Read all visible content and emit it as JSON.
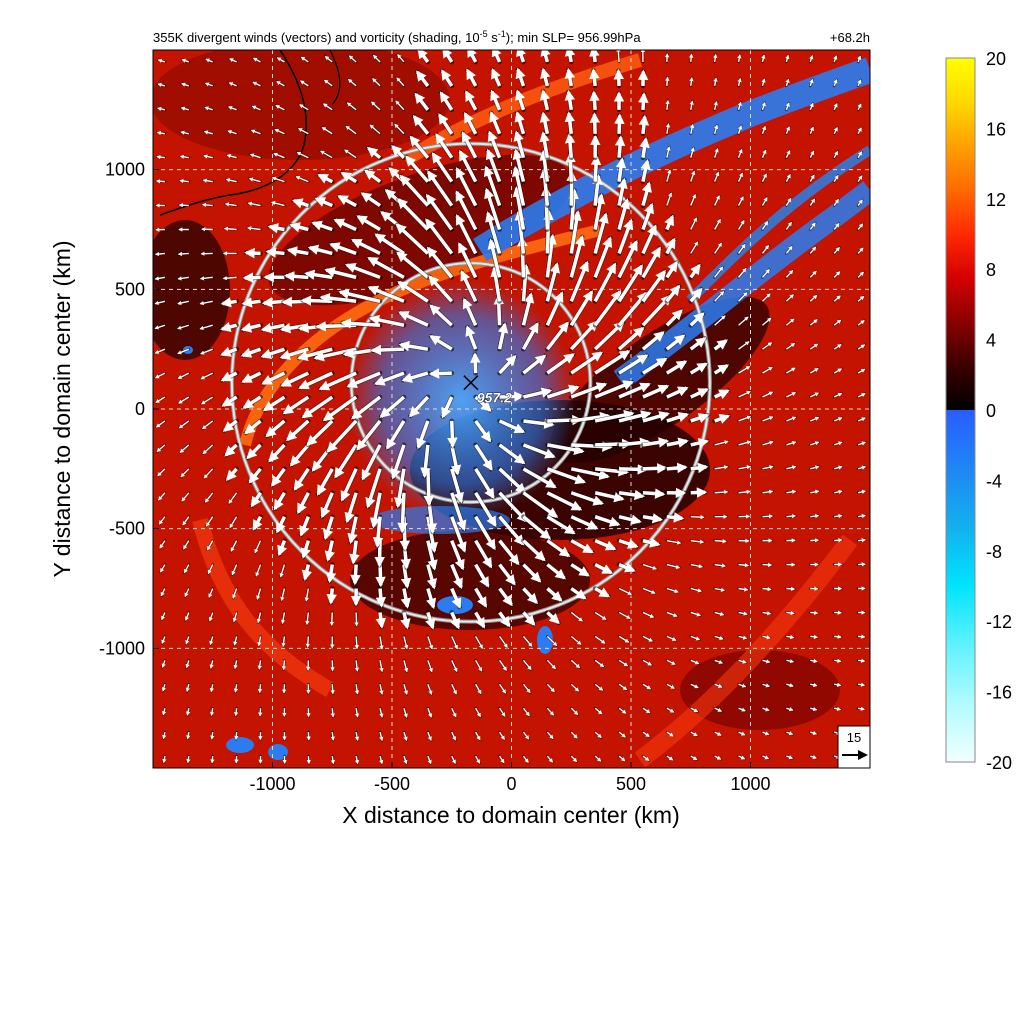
{
  "chart_data": {
    "type": "heatmap",
    "title_parts": {
      "before_exp": "355K divergent winds (vectors) and vorticity (shading, 10",
      "exp": "-5",
      "middle": " s",
      "exp2": "-1",
      "after": "); min SLP= 956.99hPa"
    },
    "forecast_time": "+68.2h",
    "xlabel": "X distance to domain center (km)",
    "ylabel": "Y distance to domain center (km)",
    "xlim": [
      -1500,
      1500
    ],
    "ylim": [
      -1500,
      1500
    ],
    "xticks": [
      -1000,
      -500,
      0,
      500,
      1000
    ],
    "yticks": [
      1000,
      500,
      0,
      -500,
      -1000
    ],
    "grid": "dashed",
    "colorbar": {
      "ticks": [
        20,
        16,
        12,
        8,
        4,
        0,
        -4,
        -8,
        -12,
        -16,
        -20
      ],
      "range": [
        -20,
        20
      ],
      "colors_positive": [
        "#000000",
        "#3a0000",
        "#8a0000",
        "#d40000",
        "#ff2a00",
        "#ff6a00",
        "#ffa000",
        "#ffd800",
        "#ffff00"
      ],
      "colors_negative": [
        "#2a5cff",
        "#1f86f5",
        "#14b0ee",
        "#00e4ff",
        "#5ff2ff",
        "#b0fbff",
        "#f2ffff"
      ]
    },
    "center_marker": {
      "x": -170,
      "y": 110,
      "label": "957.2"
    },
    "range_rings_km": [
      [
        -170,
        110,
        500
      ],
      [
        -170,
        110,
        1000
      ]
    ],
    "reference_vector": {
      "magnitude": 15
    },
    "series": []
  },
  "colors": {
    "vorticity_background": "#c41400",
    "negative_vorticity": "#2a7cf0",
    "band_bright": "#ff5a10",
    "grid": "#dddddd",
    "rings": "#e6e6e6"
  }
}
